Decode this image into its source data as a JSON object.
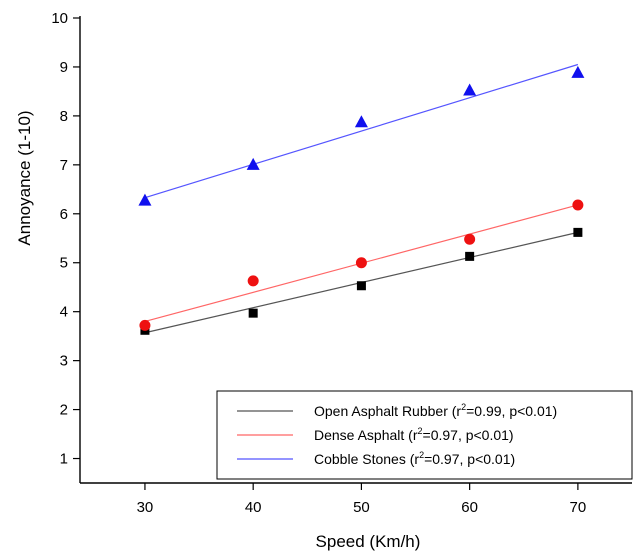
{
  "chart_data": {
    "type": "scatter",
    "xlabel": "Speed (Km/h)",
    "ylabel": "Annoyance (1-10)",
    "xlim": [
      24,
      75
    ],
    "ylim": [
      0.5,
      10
    ],
    "xticks": [
      30,
      40,
      50,
      60,
      70
    ],
    "yticks": [
      1,
      2,
      3,
      4,
      5,
      6,
      7,
      8,
      9,
      10
    ],
    "grid": false,
    "legend_position": "bottom-right",
    "series": [
      {
        "name": "Open Asphalt Rubber",
        "legend_prefix": "Open Asphalt Rubber (r",
        "legend_sup": "2",
        "legend_suffix": "=0.99, p<0.01)",
        "marker": "square",
        "color": "#000000",
        "line_color": "#555555",
        "x": [
          30,
          40,
          50,
          60,
          70
        ],
        "y": [
          3.62,
          3.97,
          4.53,
          5.13,
          5.62
        ],
        "fit": [
          [
            30,
            3.57
          ],
          [
            70,
            5.62
          ]
        ]
      },
      {
        "name": "Dense Asphalt",
        "legend_prefix": "Dense Asphalt (r",
        "legend_sup": "2",
        "legend_suffix": "=0.97, p<0.01)",
        "marker": "circle",
        "color": "#ee1111",
        "line_color": "#ff6666",
        "x": [
          30,
          40,
          50,
          60,
          70
        ],
        "y": [
          3.72,
          4.63,
          5.0,
          5.48,
          6.18
        ],
        "fit": [
          [
            30,
            3.8
          ],
          [
            70,
            6.18
          ]
        ]
      },
      {
        "name": "Cobble Stones",
        "legend_prefix": "Cobble Stones (r",
        "legend_sup": "2",
        "legend_suffix": "=0.97, p<0.01)",
        "marker": "triangle",
        "color": "#1010ee",
        "line_color": "#5555ff",
        "x": [
          30,
          40,
          50,
          60,
          70
        ],
        "y": [
          6.27,
          7.0,
          7.87,
          8.52,
          8.88
        ],
        "fit": [
          [
            30,
            6.33
          ],
          [
            70,
            9.05
          ]
        ]
      }
    ]
  }
}
